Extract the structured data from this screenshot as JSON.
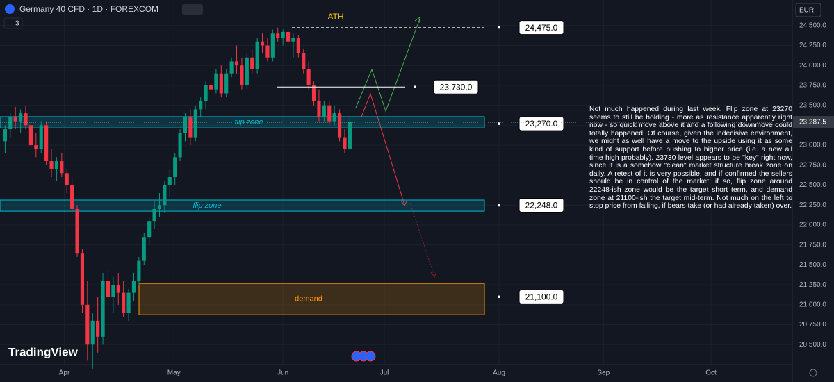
{
  "header": {
    "symbol": "Germany 40 CFD · 1D · FOREXCOM",
    "interval_count": "3",
    "currency": "EUR",
    "brand": "TradingView"
  },
  "note": "Not much happened during last week. Flip zone at 23270 seems to still be holding - more as resistance apparently right now - so quick move above it and a following downmove could totally happened. Of course, given the indecisive environment, we might as well have a move to the upside using it as some kind of support before pushing to higher price (i.e. a new all time high probably). 23730 level appears to be \"key\" right now, since it is a somehow \"clean\" market structure break zone on daily. A retest of it is very possible, and if confirmed the sellers should be in control of the market; if so, flip zone around 22248-ish zone would be the target short term, and demand zone at 21100-ish the target mid-term. Not much on the left to stop price from falling, if bears take (or had already taken) over.",
  "chart_data": {
    "type": "candlestick",
    "up_color": "#089981",
    "down_color": "#f23645",
    "ylim": [
      20250,
      24820
    ],
    "yticks": [
      {
        "value": 24500,
        "label": "24,500.0"
      },
      {
        "value": 24250,
        "label": "24,250.0"
      },
      {
        "value": 24000,
        "label": "24,000.0"
      },
      {
        "value": 23750,
        "label": "23,750.0"
      },
      {
        "value": 23500,
        "label": "23,500.0"
      },
      {
        "value": 23250,
        "label": "23,250.0"
      },
      {
        "value": 23000,
        "label": "23,000.0"
      },
      {
        "value": 22750,
        "label": "22,750.0"
      },
      {
        "value": 22500,
        "label": "22,500.0"
      },
      {
        "value": 22250,
        "label": "22,250.0"
      },
      {
        "value": 22000,
        "label": "22,000.0"
      },
      {
        "value": 21750,
        "label": "21,750.0"
      },
      {
        "value": 21500,
        "label": "21,500.0"
      },
      {
        "value": 21250,
        "label": "21,250.0"
      },
      {
        "value": 21000,
        "label": "21,000.0"
      },
      {
        "value": 20750,
        "label": "20,750.0"
      },
      {
        "value": 20500,
        "label": "20,500.0"
      }
    ],
    "xlim": [
      -1,
      153
    ],
    "xticks": [
      {
        "value": 11.5,
        "label": "Apr"
      },
      {
        "value": 32.8,
        "label": "May"
      },
      {
        "value": 54,
        "label": "Jun"
      },
      {
        "value": 73.7,
        "label": "Jul"
      },
      {
        "value": 96,
        "label": "Aug"
      },
      {
        "value": 116.3,
        "label": "Sep"
      },
      {
        "value": 137.2,
        "label": "Oct"
      }
    ],
    "current": {
      "value": 23287.5,
      "label": "23,287.5"
    },
    "ath_label": "ATH",
    "zones": [
      {
        "label": "flip zone",
        "low": 23217,
        "high": 23358,
        "color": "#00bcd4"
      },
      {
        "label": "flip zone",
        "low": 22173,
        "high": 22313,
        "color": "#00bcd4"
      },
      {
        "label": "demand",
        "low": 20875,
        "high": 21267,
        "color": "#ff9800"
      }
    ],
    "levels": [
      {
        "value": 24475,
        "label": "24,475.0"
      },
      {
        "value": 23730,
        "label": "23,730.0"
      },
      {
        "value": 23270,
        "label": "23,270.0"
      },
      {
        "value": 22248,
        "label": "22,248.0"
      },
      {
        "value": 21100,
        "label": "21,100.0"
      }
    ],
    "candles": [
      [
        23050,
        23250,
        22900,
        23200
      ],
      [
        23200,
        23400,
        23100,
        23350
      ],
      [
        23350,
        23480,
        23200,
        23300
      ],
      [
        23300,
        23450,
        23150,
        23400
      ],
      [
        23400,
        23500,
        23200,
        23250
      ],
      [
        23250,
        23300,
        22950,
        23000
      ],
      [
        23000,
        23150,
        22850,
        22950
      ],
      [
        22950,
        23300,
        22900,
        23250
      ],
      [
        23250,
        23300,
        22750,
        22800
      ],
      [
        22800,
        22950,
        22600,
        22700
      ],
      [
        22700,
        22850,
        22550,
        22800
      ],
      [
        22800,
        22900,
        22600,
        22650
      ],
      [
        22650,
        22700,
        22400,
        22500
      ],
      [
        22500,
        22600,
        22150,
        22200
      ],
      [
        22200,
        22250,
        21600,
        21650
      ],
      [
        21650,
        21700,
        20900,
        21000
      ],
      [
        21000,
        21300,
        20300,
        20500
      ],
      [
        20500,
        20900,
        20200,
        20800
      ],
      [
        20800,
        21100,
        20400,
        20600
      ],
      [
        20600,
        21400,
        20500,
        21300
      ],
      [
        21300,
        21450,
        21050,
        21100
      ],
      [
        21100,
        21350,
        20900,
        21250
      ],
      [
        21250,
        21400,
        21000,
        21150
      ],
      [
        21150,
        21300,
        20850,
        20900
      ],
      [
        20900,
        21200,
        20800,
        21150
      ],
      [
        21150,
        21400,
        21050,
        21300
      ],
      [
        21300,
        21600,
        21250,
        21550
      ],
      [
        21550,
        21900,
        21500,
        21850
      ],
      [
        21850,
        22100,
        21750,
        22050
      ],
      [
        22050,
        22300,
        21950,
        22200
      ],
      [
        22200,
        22400,
        22100,
        22250
      ],
      [
        22250,
        22550,
        22150,
        22500
      ],
      [
        22500,
        22700,
        22350,
        22600
      ],
      [
        22600,
        22900,
        22500,
        22850
      ],
      [
        22850,
        23200,
        22800,
        23150
      ],
      [
        23150,
        23400,
        23050,
        23350
      ],
      [
        23350,
        23450,
        23000,
        23100
      ],
      [
        23100,
        23500,
        23050,
        23450
      ],
      [
        23450,
        23600,
        23350,
        23550
      ],
      [
        23550,
        23800,
        23450,
        23750
      ],
      [
        23750,
        23900,
        23600,
        23700
      ],
      [
        23700,
        23950,
        23650,
        23900
      ],
      [
        23900,
        24000,
        23600,
        23650
      ],
      [
        23650,
        23950,
        23600,
        23900
      ],
      [
        23900,
        24100,
        23850,
        24050
      ],
      [
        24050,
        24250,
        23900,
        24000
      ],
      [
        24000,
        24100,
        23700,
        23750
      ],
      [
        23750,
        24150,
        23700,
        24100
      ],
      [
        24100,
        24200,
        23900,
        23950
      ],
      [
        23950,
        24350,
        23900,
        24300
      ],
      [
        24300,
        24400,
        24150,
        24250
      ],
      [
        24250,
        24350,
        24050,
        24100
      ],
      [
        24100,
        24450,
        24050,
        24400
      ],
      [
        24400,
        24475,
        24300,
        24350
      ],
      [
        24350,
        24450,
        24250,
        24420
      ],
      [
        24420,
        24450,
        24250,
        24300
      ],
      [
        24300,
        24400,
        24100,
        24350
      ],
      [
        24350,
        24380,
        24100,
        24150
      ],
      [
        24150,
        24200,
        23900,
        23950
      ],
      [
        23950,
        24050,
        23700,
        23750
      ],
      [
        23750,
        23800,
        23500,
        23550
      ],
      [
        23550,
        23700,
        23300,
        23350
      ],
      [
        23350,
        23550,
        23300,
        23500
      ],
      [
        23500,
        23550,
        23250,
        23300
      ],
      [
        23300,
        23500,
        23250,
        23400
      ],
      [
        23400,
        23450,
        23050,
        23100
      ],
      [
        23100,
        23200,
        22900,
        22950
      ],
      [
        22950,
        23350,
        22950,
        23287.5
      ]
    ]
  }
}
